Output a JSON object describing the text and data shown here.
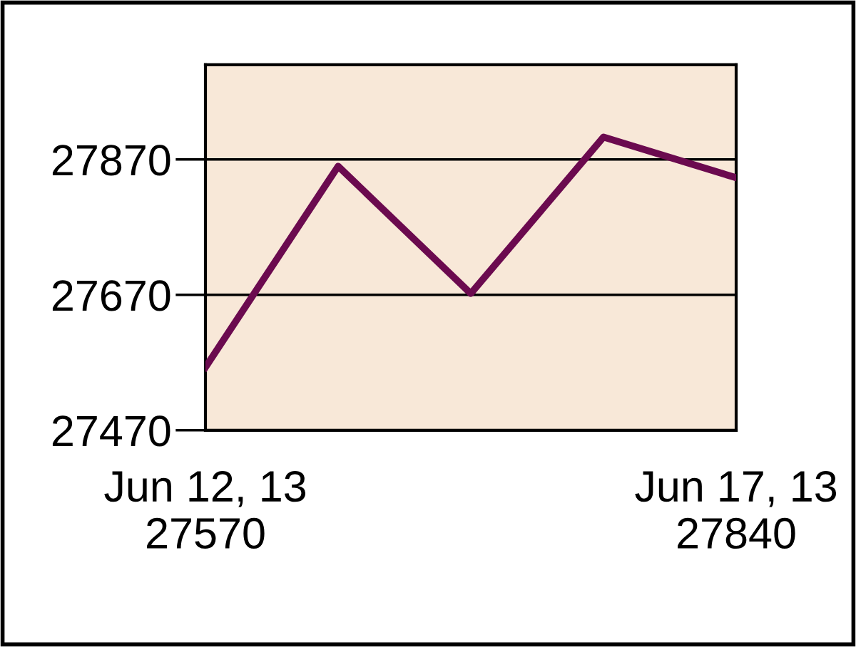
{
  "chart_data": {
    "type": "line",
    "categories": [
      "Jun 12, 13\n27570",
      null,
      null,
      null,
      "Jun 17, 13\n27840"
    ],
    "series": [
      {
        "color": "#6b0a4f",
        "values": [
          27563,
          27860,
          27672,
          27903,
          27843
        ]
      }
    ],
    "ylim": [
      27470,
      28010
    ],
    "yticks": [
      27470,
      27670,
      27870
    ],
    "grid": "y",
    "legend": false,
    "marker": "none",
    "line_style": "solid"
  }
}
